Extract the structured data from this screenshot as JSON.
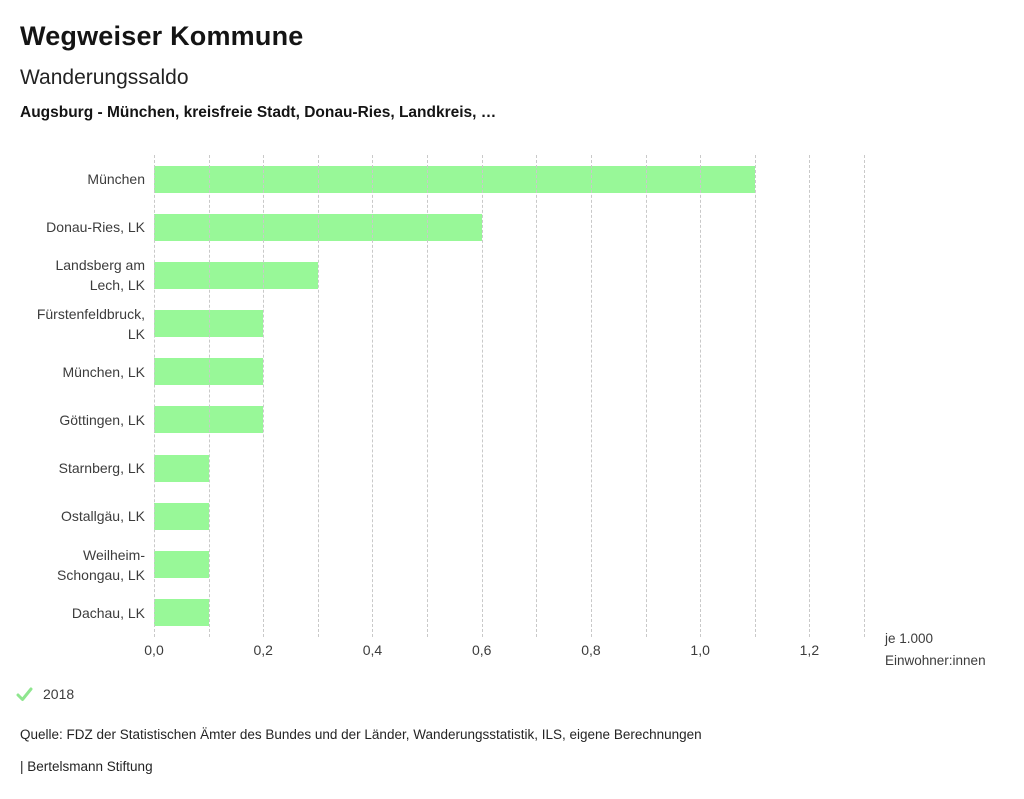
{
  "header": {
    "title": "Wegweiser Kommune",
    "subtitle": "Wanderungssaldo",
    "selection": "Augsburg - München, kreisfreie Stadt, Donau-Ries, Landkreis, …"
  },
  "chart_data": {
    "type": "bar",
    "orientation": "horizontal",
    "title": "Wanderungssaldo",
    "categories": [
      "München",
      "Donau-Ries, LK",
      "Landsberg am Lech, LK",
      "Fürstenfeldbruck, LK",
      "München, LK",
      "Göttingen, LK",
      "Starnberg, LK",
      "Ostallgäu, LK",
      "Weilheim-Schongau, LK",
      "Dachau, LK"
    ],
    "category_label_lines": [
      [
        "München"
      ],
      [
        "Donau-Ries, LK"
      ],
      [
        "Landsberg am",
        "Lech, LK"
      ],
      [
        "Fürstenfeldbruck,",
        "LK"
      ],
      [
        "München, LK"
      ],
      [
        "Göttingen, LK"
      ],
      [
        "Starnberg, LK"
      ],
      [
        "Ostallgäu, LK"
      ],
      [
        "Weilheim-",
        "Schongau, LK"
      ],
      [
        "Dachau, LK"
      ]
    ],
    "series": [
      {
        "name": "2018",
        "values": [
          1.1,
          0.6,
          0.3,
          0.2,
          0.2,
          0.2,
          0.1,
          0.1,
          0.1,
          0.1
        ]
      }
    ],
    "xlim": [
      0,
      1.3
    ],
    "gridline_step": 0.1,
    "grid": "dashed-vertical",
    "x_ticks": [
      {
        "value": 0.0,
        "label": "0,0"
      },
      {
        "value": 0.2,
        "label": "0,2"
      },
      {
        "value": 0.4,
        "label": "0,4"
      },
      {
        "value": 0.6,
        "label": "0,6"
      },
      {
        "value": 0.8,
        "label": "0,8"
      },
      {
        "value": 1.0,
        "label": "1,0"
      },
      {
        "value": 1.2,
        "label": "1,2"
      }
    ],
    "unit_label_lines": [
      "je 1.000",
      "Einwohner:innen"
    ],
    "bar_color": "#98f898",
    "gridline_color": "#c9c9c9"
  },
  "legend": {
    "year": "2018",
    "check_color": "#8fe68f"
  },
  "footer": {
    "source": "Quelle: FDZ der Statistischen Ämter des Bundes und der Länder, Wanderungsstatistik, ILS, eigene Berechnungen",
    "attribution": "| Bertelsmann Stiftung"
  }
}
